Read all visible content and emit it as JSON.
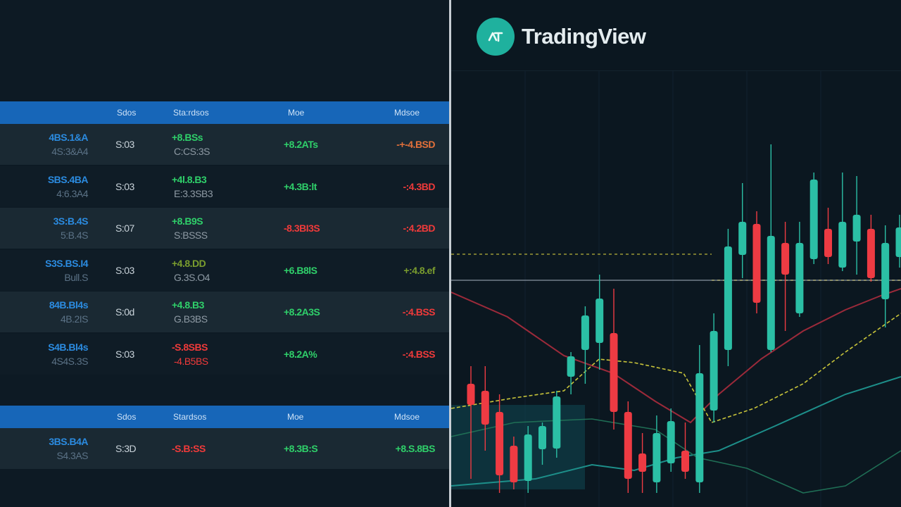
{
  "brand": {
    "name": "TradingView",
    "logo": "tradingview-logo-icon"
  },
  "table1": {
    "headers": [
      "Sdos",
      "Sta:rdsos",
      "Moe",
      "Mdsoe"
    ],
    "rows": [
      {
        "sym": "4BS.1&A",
        "sub": "4S:3&A4",
        "venue": "S:03",
        "price": "+8.BSs",
        "price_sub": "C:CS:3S",
        "chg": "+8.2ATs",
        "pct": "-+-4.BSD",
        "price_color": "green",
        "chg_color": "green",
        "pct_color": "orange"
      },
      {
        "sym": "SBS.4BA",
        "sub": "4:6.3A4",
        "venue": "S:03",
        "price": "+4l.8.B3",
        "price_sub": "E:3.3SB3",
        "chg": "+4.3B:lt",
        "pct": "-:4.3BD",
        "price_color": "green",
        "chg_color": "green",
        "pct_color": "red"
      },
      {
        "sym": "3S:B.4S",
        "sub": "5:B.4S",
        "venue": "S:07",
        "price": "+8.B9S",
        "price_sub": "S:BSSS",
        "chg": "-8.3BI3S",
        "pct": "-:4.2BD",
        "price_color": "green",
        "chg_color": "red",
        "pct_color": "red"
      },
      {
        "sym": "S3S.BS.I4",
        "sub": "Bull.S",
        "venue": "S:03",
        "price": "+4.8.DD",
        "price_sub": "G.3S.O4",
        "chg": "+6.B8lS",
        "pct": "+:4.8.ef",
        "price_color": "olive",
        "chg_color": "green",
        "pct_color": "olive"
      },
      {
        "sym": "84B.Bl4s",
        "sub": "4B.2IS",
        "venue": "S:0d",
        "price": "+4.8.B3",
        "price_sub": "G.B3BS",
        "chg": "+8.2A3S",
        "pct": "-:4.BSS",
        "price_color": "green",
        "chg_color": "green",
        "pct_color": "red"
      },
      {
        "sym": "S4B.Bl4s",
        "sub": "4S4S.3S",
        "venue": "S:03",
        "price": "-S.8SBS",
        "price_sub": "-4.B5BS",
        "chg": "+8.2A%",
        "pct": "-:4.BSS",
        "price_color": "red",
        "chg_color": "green",
        "pct_color": "red"
      }
    ]
  },
  "table2": {
    "headers": [
      "Sdos",
      "Stardsos",
      "Moe",
      "Mdsoe"
    ],
    "rows": [
      {
        "sym": "3BS.B4A",
        "sub": "S4.3AS",
        "venue": "S:3D",
        "price": "-S.B:SS",
        "chg": "+8.3B:S",
        "pct": "+8.S.8BS",
        "price_color": "red",
        "chg_color": "green",
        "pct_color": "green"
      }
    ]
  },
  "chart_data": {
    "type": "candlestick",
    "candles": [
      [
        0.0,
        545,
        575,
        520,
        680,
        "bear"
      ],
      [
        1.0,
        555,
        603,
        520,
        640,
        "bear"
      ],
      [
        2.0,
        585,
        675,
        560,
        700,
        "bear"
      ],
      [
        3.0,
        633,
        685,
        620,
        695,
        "bear"
      ],
      [
        4.0,
        617,
        683,
        605,
        700,
        "bull"
      ],
      [
        5.0,
        638,
        605,
        600,
        660,
        "bull"
      ],
      [
        6.0,
        563,
        637,
        555,
        650,
        "bull"
      ],
      [
        7.0,
        506,
        535,
        500,
        560,
        "bull"
      ],
      [
        8.0,
        448,
        497,
        435,
        545,
        "bull"
      ],
      [
        9.0,
        424,
        487,
        390,
        525,
        "bull"
      ],
      [
        10.0,
        473,
        585,
        410,
        610,
        "bear"
      ],
      [
        11.0,
        585,
        680,
        570,
        700,
        "bear"
      ],
      [
        12.0,
        644,
        670,
        615,
        700,
        "bear"
      ],
      [
        13.0,
        615,
        685,
        590,
        700,
        "bull"
      ],
      [
        14.0,
        598,
        658,
        580,
        670,
        "bull"
      ],
      [
        15.0,
        640,
        670,
        600,
        680,
        "bear"
      ],
      [
        16.0,
        530,
        685,
        490,
        700,
        "bull"
      ],
      [
        17.0,
        470,
        583,
        445,
        600,
        "bull"
      ],
      [
        18.0,
        350,
        497,
        325,
        520,
        "bull"
      ],
      [
        19.0,
        315,
        362,
        260,
        395,
        "bull"
      ],
      [
        20.0,
        318,
        430,
        300,
        445,
        "bear"
      ],
      [
        21.0,
        335,
        497,
        205,
        500,
        "bull"
      ],
      [
        22.0,
        345,
        390,
        315,
        470,
        "bear"
      ],
      [
        23.0,
        345,
        445,
        315,
        450,
        "bull"
      ],
      [
        24.0,
        255,
        368,
        245,
        375,
        "bull"
      ],
      [
        25.0,
        325,
        365,
        295,
        375,
        "bear"
      ],
      [
        26.0,
        315,
        380,
        245,
        385,
        "bull"
      ],
      [
        27.0,
        305,
        343,
        250,
        390,
        "bull"
      ],
      [
        28.0,
        325,
        395,
        305,
        400,
        "bear"
      ],
      [
        29.0,
        345,
        425,
        320,
        465,
        "bull"
      ],
      [
        30.0,
        323,
        365,
        305,
        380,
        "bull"
      ]
    ]
  }
}
